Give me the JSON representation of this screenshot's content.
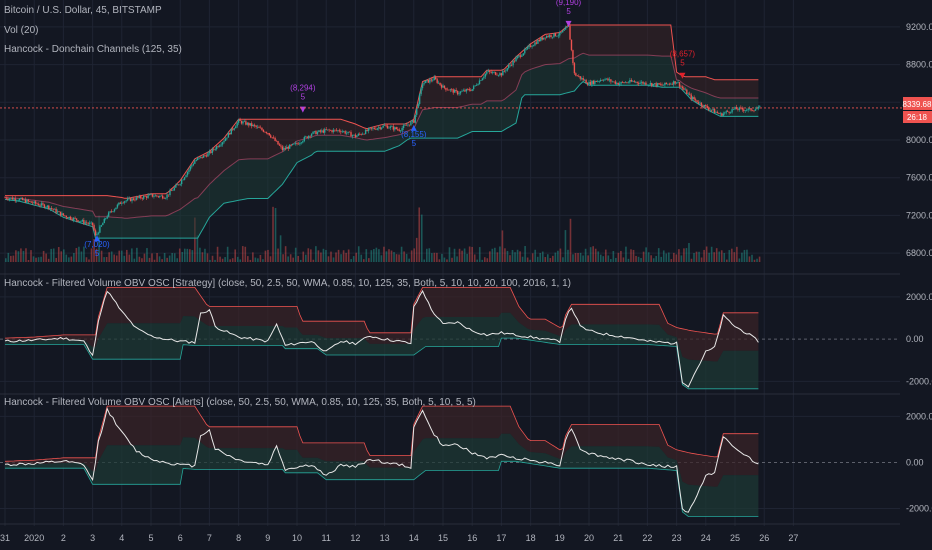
{
  "header": {
    "symbol": "Bitcoin / U.S. Dollar, 45, BITSTAMP",
    "vol_label": "Vol (20)",
    "indicator": "Hancock - Donchain Channels (125, 35)"
  },
  "price_tags": {
    "last": "8339.68",
    "countdown": "26:18"
  },
  "signals": [
    {
      "price": "(7,020)",
      "qty": "5",
      "color": "#2962ff"
    },
    {
      "price": "(8,294)",
      "qty": "5",
      "color": "#b040e0"
    },
    {
      "price": "(8,155)",
      "qty": "5",
      "color": "#2962ff"
    },
    {
      "price": "(9,190)",
      "qty": "5",
      "color": "#b040e0"
    },
    {
      "price": "(8,657)",
      "qty": "5",
      "color": "#e0202a"
    }
  ],
  "osc_panels": [
    {
      "title": "Hancock - Filtered Volume OBV OSC [Strategy] (close, 50, 2.5, 50, WMA, 0.85, 10, 125, 35, Both, 5, 10, 10, 20, 100, 2016, 1, 1)"
    },
    {
      "title": "Hancock - Filtered Volume OBV OSC [Alerts] (close, 50, 2.5, 50, WMA, 0.85, 10, 125, 35, Both, 5, 10, 5, 5)"
    }
  ],
  "colors": {
    "background": "#131722",
    "grid": "#1f2433",
    "up": "#26a69a",
    "down": "#ef5350",
    "channel_up_fill": "#1e3a34",
    "channel_down_fill": "#3a2427",
    "osc_line": "#e8e8e8"
  },
  "chart_data": {
    "type": "line",
    "x_dates": [
      "31",
      "2020",
      "2",
      "3",
      "4",
      "5",
      "6",
      "7",
      "8",
      "9",
      "10",
      "11",
      "12",
      "13",
      "14",
      "15",
      "16",
      "17",
      "18",
      "19",
      "20",
      "21",
      "22",
      "23",
      "24",
      "25",
      "26",
      "27"
    ],
    "price_axis": {
      "ticks": [
        "9200.00",
        "8800.00",
        "8400.00",
        "8000.00",
        "7600.00",
        "7200.00",
        "6800.00"
      ],
      "ylim": [
        6600,
        9400
      ]
    },
    "osc_axis": {
      "ticks": [
        "2000.00",
        "0.00",
        "-2000.00"
      ],
      "ylim": [
        -2500,
        2800
      ]
    },
    "price": [
      [
        0,
        7390
      ],
      [
        0.5,
        7370
      ],
      [
        1,
        7330
      ],
      [
        1.5,
        7290
      ],
      [
        2,
        7200
      ],
      [
        2.5,
        7150
      ],
      [
        3,
        7100
      ],
      [
        3.1,
        6980
      ],
      [
        3.5,
        7200
      ],
      [
        4,
        7350
      ],
      [
        4.5,
        7380
      ],
      [
        5,
        7410
      ],
      [
        5.5,
        7400
      ],
      [
        6,
        7550
      ],
      [
        6.5,
        7780
      ],
      [
        7,
        7860
      ],
      [
        7.5,
        8000
      ],
      [
        8,
        8200
      ],
      [
        8.5,
        8150
      ],
      [
        9,
        8080
      ],
      [
        9.5,
        7900
      ],
      [
        10,
        7960
      ],
      [
        10.5,
        8070
      ],
      [
        11,
        8100
      ],
      [
        11.5,
        8100
      ],
      [
        12,
        8040
      ],
      [
        12.5,
        8110
      ],
      [
        13,
        8150
      ],
      [
        13.5,
        8110
      ],
      [
        14,
        8200
      ],
      [
        14.3,
        8600
      ],
      [
        14.7,
        8650
      ],
      [
        15,
        8560
      ],
      [
        15.5,
        8500
      ],
      [
        16,
        8540
      ],
      [
        16.5,
        8720
      ],
      [
        17,
        8700
      ],
      [
        17.5,
        8860
      ],
      [
        18,
        9000
      ],
      [
        18.5,
        9100
      ],
      [
        19,
        9120
      ],
      [
        19.3,
        9200
      ],
      [
        19.5,
        8700
      ],
      [
        20,
        8600
      ],
      [
        20.5,
        8650
      ],
      [
        21,
        8600
      ],
      [
        21.5,
        8620
      ],
      [
        22,
        8600
      ],
      [
        22.5,
        8580
      ],
      [
        23,
        8620
      ],
      [
        23.2,
        8550
      ],
      [
        23.5,
        8450
      ],
      [
        24,
        8350
      ],
      [
        24.5,
        8270
      ],
      [
        25,
        8330
      ],
      [
        25.5,
        8320
      ],
      [
        25.9,
        8340
      ]
    ],
    "osc": [
      [
        0,
        -100
      ],
      [
        1,
        -50
      ],
      [
        2,
        50
      ],
      [
        2.7,
        -100
      ],
      [
        3,
        -800
      ],
      [
        3.2,
        900
      ],
      [
        3.5,
        2300
      ],
      [
        4,
        1300
      ],
      [
        4.5,
        500
      ],
      [
        5,
        150
      ],
      [
        5.5,
        0
      ],
      [
        6,
        -100
      ],
      [
        6.5,
        -150
      ],
      [
        6.7,
        1200
      ],
      [
        7,
        1400
      ],
      [
        7.2,
        600
      ],
      [
        7.5,
        400
      ],
      [
        8,
        100
      ],
      [
        8.5,
        0
      ],
      [
        9,
        -100
      ],
      [
        9.3,
        700
      ],
      [
        9.6,
        -300
      ],
      [
        10,
        -200
      ],
      [
        10.5,
        -100
      ],
      [
        11,
        -600
      ],
      [
        11.5,
        -100
      ],
      [
        12,
        -200
      ],
      [
        12.5,
        150
      ],
      [
        13,
        0
      ],
      [
        13.5,
        -100
      ],
      [
        13.9,
        -200
      ],
      [
        14,
        1500
      ],
      [
        14.3,
        2300
      ],
      [
        14.6,
        1400
      ],
      [
        15,
        700
      ],
      [
        15.5,
        800
      ],
      [
        16,
        400
      ],
      [
        16.5,
        200
      ],
      [
        17,
        300
      ],
      [
        17.5,
        200
      ],
      [
        18,
        100
      ],
      [
        18.5,
        0
      ],
      [
        19,
        -100
      ],
      [
        19.2,
        1000
      ],
      [
        19.4,
        1500
      ],
      [
        19.7,
        600
      ],
      [
        20,
        400
      ],
      [
        20.5,
        250
      ],
      [
        21,
        150
      ],
      [
        21.5,
        50
      ],
      [
        22,
        -100
      ],
      [
        22.5,
        -150
      ],
      [
        23,
        -200
      ],
      [
        23.2,
        -2000
      ],
      [
        23.4,
        -2200
      ],
      [
        23.7,
        -1400
      ],
      [
        24,
        -600
      ],
      [
        24.3,
        -400
      ],
      [
        24.6,
        1100
      ],
      [
        25,
        600
      ],
      [
        25.5,
        200
      ],
      [
        25.9,
        -200
      ]
    ]
  }
}
